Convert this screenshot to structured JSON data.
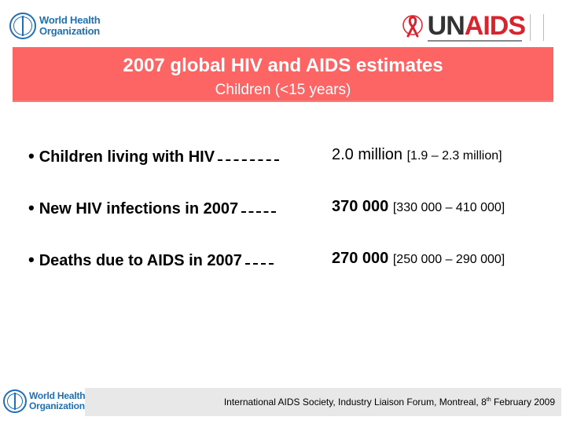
{
  "logos": {
    "who_name_line1": "World Health",
    "who_name_line2": "Organization",
    "unaids_un": "UN",
    "unaids_aids": "AIDS"
  },
  "banner": {
    "title": "2007 global HIV and AIDS estimates",
    "subtitle": "Children (<15 years)"
  },
  "estimates": [
    {
      "label": "Children living with HIV",
      "value": "2.0 million",
      "range": "[1.9 – 2.3 million]"
    },
    {
      "label": "New HIV infections in 2007",
      "value": "370 000",
      "range": "[330 000 – 410 000]"
    },
    {
      "label": "Deaths due to AIDS in 2007",
      "value": "270 000",
      "range": "[250 000 – 290 000]"
    }
  ],
  "footer": {
    "text": "International AIDS Society, Industry Liaison Forum, Montreal, 8",
    "superscript": "th",
    "date_rest": " February 2009"
  },
  "colors": {
    "banner": "#fd6565",
    "who_blue": "#1f6fb5",
    "unaids_red": "#d9232d"
  }
}
